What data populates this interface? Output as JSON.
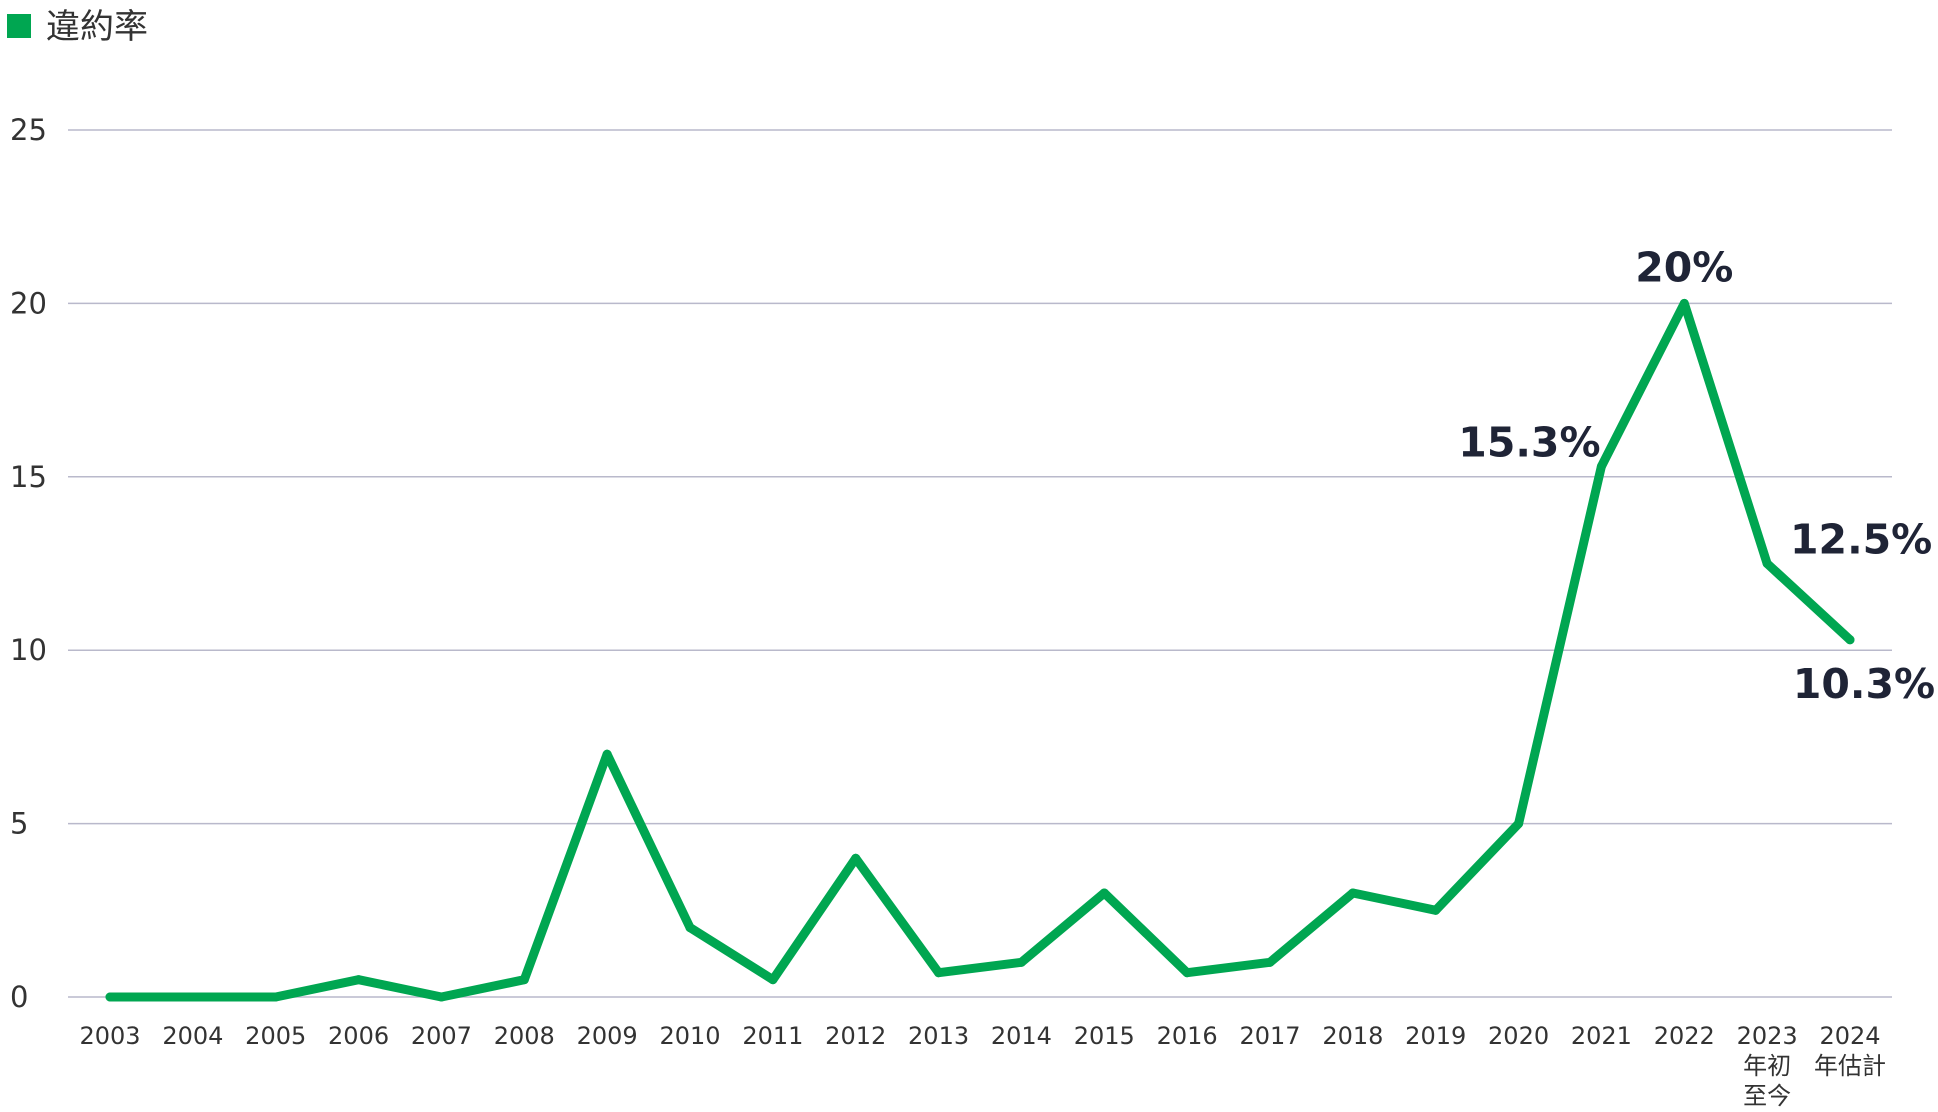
{
  "chart_data": {
    "type": "line",
    "legend": {
      "entries": [
        "違約率"
      ],
      "placement": "top-left"
    },
    "categories": [
      "2003",
      "2004",
      "2005",
      "2006",
      "2007",
      "2008",
      "2009",
      "2010",
      "2011",
      "2012",
      "2013",
      "2014",
      "2015",
      "2016",
      "2017",
      "2018",
      "2019",
      "2020",
      "2021",
      "2022",
      "2023\n年初\n至今",
      "2024\n年估計"
    ],
    "series": [
      {
        "name": "違約率",
        "color": "#00a651",
        "values": [
          0,
          0,
          0,
          0.5,
          0,
          0.5,
          7.0,
          2.0,
          0.5,
          4.0,
          0.7,
          1.0,
          3.0,
          0.7,
          1.0,
          3.0,
          2.5,
          5.0,
          15.3,
          20.0,
          12.5,
          10.3
        ]
      }
    ],
    "annotations": [
      {
        "index": 18,
        "text": "15.3%"
      },
      {
        "index": 19,
        "text": "20%"
      },
      {
        "index": 20,
        "text": "12.5%"
      },
      {
        "index": 21,
        "text": "10.3%"
      }
    ],
    "yticks": [
      0,
      5,
      10,
      15,
      20,
      25
    ],
    "ylim": [
      0,
      25
    ],
    "grid": true,
    "colors": {
      "line": "#00a651",
      "grid": "#b9b9cb",
      "label": "#1f2436",
      "tick": "#333333"
    }
  }
}
